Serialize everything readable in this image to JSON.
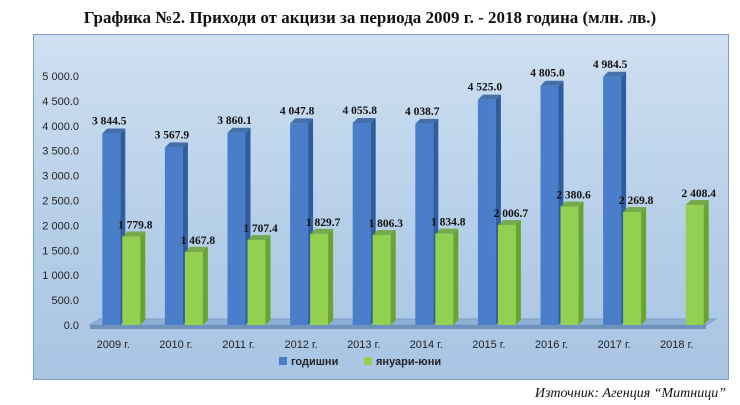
{
  "title": "Графика №2. Приходи от акцизи за периода 2009 г. - 2018 година (млн. лв.)",
  "source": "Източник: Агенция “Митници”",
  "colors": {
    "annual": "#4a7ecb",
    "annual_side": "#2f5d9e",
    "janjun": "#92d050",
    "janjun_side": "#6aa332"
  },
  "chart_data": {
    "type": "bar",
    "title": "Графика №2. Приходи от акцизи за периода 2009 г. - 2018 година (млн. лв.)",
    "categories": [
      "2009 г.",
      "2010 г.",
      "2011 г.",
      "2012 г.",
      "2013 г.",
      "2014 г.",
      "2015 г.",
      "2016 г.",
      "2017 г.",
      "2018 г."
    ],
    "series": [
      {
        "name": "годишни",
        "values": [
          3844.5,
          3567.9,
          3860.1,
          4047.8,
          4055.8,
          4038.7,
          4525.0,
          4805.0,
          4984.5,
          null
        ],
        "labels": [
          "3 844.5",
          "3 567.9",
          "3 860.1",
          "4 047.8",
          "4 055.8",
          "4 038.7",
          "4 525.0",
          "4 805.0",
          "4 984.5",
          ""
        ]
      },
      {
        "name": "януари-юни",
        "values": [
          1779.8,
          1467.8,
          1707.4,
          1829.7,
          1806.3,
          1834.8,
          2006.7,
          2380.6,
          2269.8,
          2408.4
        ],
        "labels": [
          "1 779.8",
          "1 467.8",
          "1 707.4",
          "1 829.7",
          "1 806.3",
          "1 834.8",
          "2 006.7",
          "2 380.6",
          "2 269.8",
          "2 408.4"
        ]
      }
    ],
    "yticks": [
      "0.0",
      "500.0",
      "1 000.0",
      "1 500.0",
      "2 000.0",
      "2 500.0",
      "3 000.0",
      "3 500.0",
      "4 000.0",
      "4 500.0",
      "5 000.0"
    ],
    "ylim": [
      0,
      5000
    ],
    "grid": false,
    "legend": "bottom"
  }
}
